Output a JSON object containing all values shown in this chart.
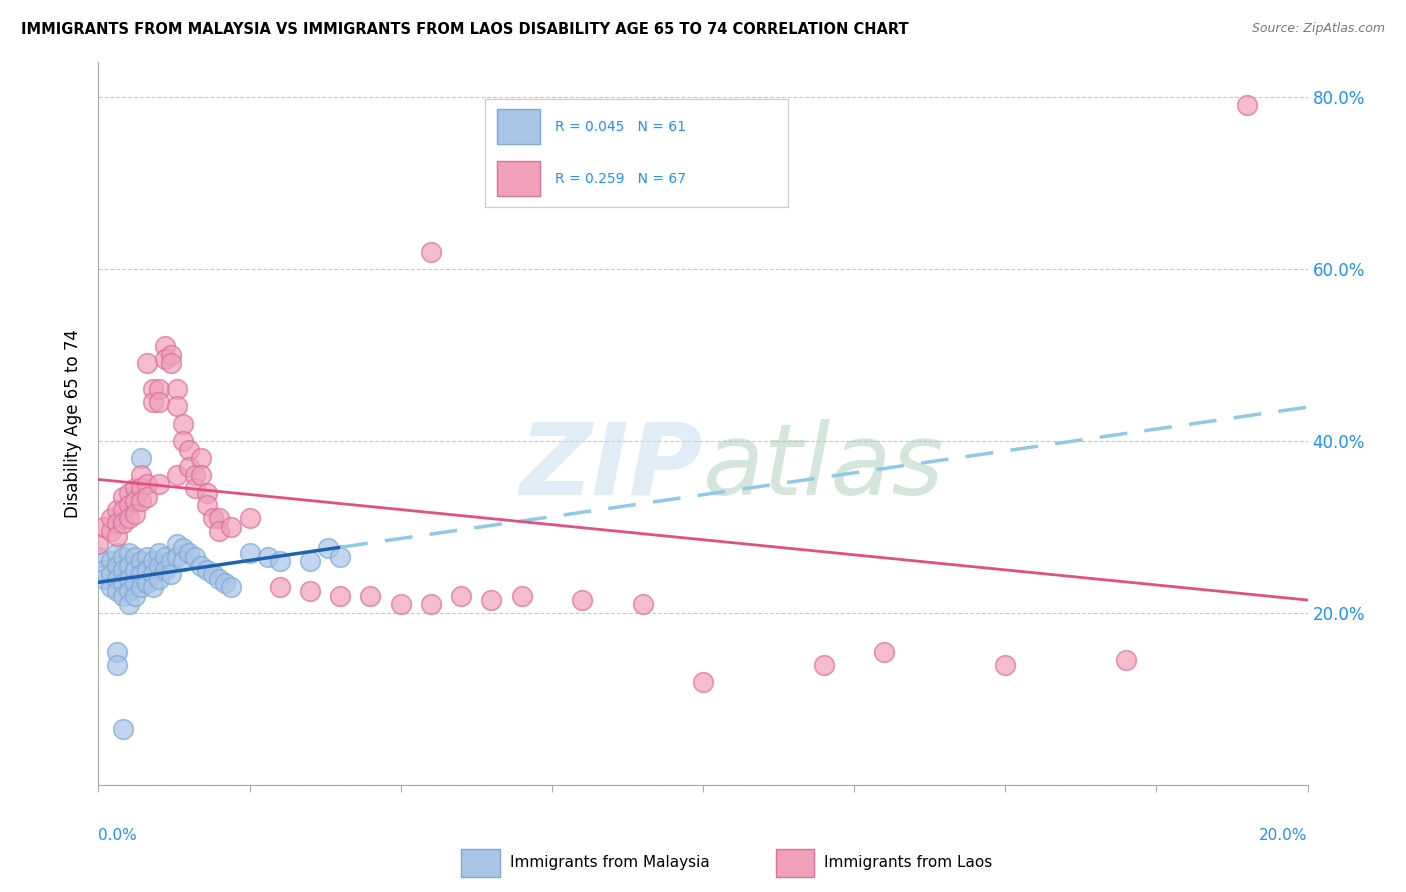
{
  "title": "IMMIGRANTS FROM MALAYSIA VS IMMIGRANTS FROM LAOS DISABILITY AGE 65 TO 74 CORRELATION CHART",
  "source": "Source: ZipAtlas.com",
  "ylabel": "Disability Age 65 to 74",
  "ylim": [
    0.0,
    0.84
  ],
  "xlim": [
    0.0,
    0.2
  ],
  "ytick_vals": [
    0.0,
    0.2,
    0.4,
    0.6,
    0.8
  ],
  "ytick_labels": [
    "",
    "20.0%",
    "40.0%",
    "60.0%",
    "80.0%"
  ],
  "malaysia_color": "#aac4e8",
  "malaysia_edge": "#7aaad0",
  "laos_color": "#f0a0b8",
  "laos_edge": "#d870a0",
  "malaysia_line_color": "#2060b0",
  "laos_line_color": "#e05080",
  "dashed_color": "#90c8e8",
  "malaysia_R": 0.045,
  "malaysia_N": 61,
  "laos_R": 0.259,
  "laos_N": 67,
  "watermark_text": "ZIPatlas",
  "legend_R_color": "#1E90FF",
  "bottom_legend_malaysia": "Immigrants from Malaysia",
  "bottom_legend_laos": "Immigrants from Laos",
  "malaysia_scatter": [
    [
      0.0,
      0.265
    ],
    [
      0.001,
      0.25
    ],
    [
      0.001,
      0.24
    ],
    [
      0.002,
      0.26
    ],
    [
      0.002,
      0.245
    ],
    [
      0.002,
      0.23
    ],
    [
      0.003,
      0.27
    ],
    [
      0.003,
      0.255
    ],
    [
      0.003,
      0.24
    ],
    [
      0.003,
      0.225
    ],
    [
      0.004,
      0.265
    ],
    [
      0.004,
      0.25
    ],
    [
      0.004,
      0.235
    ],
    [
      0.004,
      0.22
    ],
    [
      0.005,
      0.27
    ],
    [
      0.005,
      0.255
    ],
    [
      0.005,
      0.24
    ],
    [
      0.005,
      0.225
    ],
    [
      0.005,
      0.21
    ],
    [
      0.006,
      0.265
    ],
    [
      0.006,
      0.25
    ],
    [
      0.006,
      0.235
    ],
    [
      0.006,
      0.22
    ],
    [
      0.007,
      0.26
    ],
    [
      0.007,
      0.245
    ],
    [
      0.007,
      0.23
    ],
    [
      0.007,
      0.38
    ],
    [
      0.008,
      0.265
    ],
    [
      0.008,
      0.25
    ],
    [
      0.008,
      0.235
    ],
    [
      0.009,
      0.26
    ],
    [
      0.009,
      0.245
    ],
    [
      0.009,
      0.23
    ],
    [
      0.01,
      0.27
    ],
    [
      0.01,
      0.255
    ],
    [
      0.01,
      0.24
    ],
    [
      0.011,
      0.265
    ],
    [
      0.011,
      0.25
    ],
    [
      0.012,
      0.26
    ],
    [
      0.012,
      0.245
    ],
    [
      0.013,
      0.28
    ],
    [
      0.013,
      0.265
    ],
    [
      0.014,
      0.275
    ],
    [
      0.014,
      0.26
    ],
    [
      0.015,
      0.27
    ],
    [
      0.016,
      0.265
    ],
    [
      0.017,
      0.255
    ],
    [
      0.018,
      0.25
    ],
    [
      0.019,
      0.245
    ],
    [
      0.02,
      0.24
    ],
    [
      0.021,
      0.235
    ],
    [
      0.022,
      0.23
    ],
    [
      0.025,
      0.27
    ],
    [
      0.028,
      0.265
    ],
    [
      0.03,
      0.26
    ],
    [
      0.035,
      0.26
    ],
    [
      0.038,
      0.275
    ],
    [
      0.04,
      0.265
    ],
    [
      0.003,
      0.155
    ],
    [
      0.003,
      0.14
    ],
    [
      0.004,
      0.065
    ]
  ],
  "laos_scatter": [
    [
      0.0,
      0.28
    ],
    [
      0.001,
      0.3
    ],
    [
      0.002,
      0.295
    ],
    [
      0.002,
      0.31
    ],
    [
      0.003,
      0.32
    ],
    [
      0.003,
      0.305
    ],
    [
      0.003,
      0.29
    ],
    [
      0.004,
      0.335
    ],
    [
      0.004,
      0.32
    ],
    [
      0.004,
      0.305
    ],
    [
      0.005,
      0.34
    ],
    [
      0.005,
      0.325
    ],
    [
      0.005,
      0.31
    ],
    [
      0.006,
      0.345
    ],
    [
      0.006,
      0.33
    ],
    [
      0.006,
      0.315
    ],
    [
      0.007,
      0.36
    ],
    [
      0.007,
      0.345
    ],
    [
      0.007,
      0.33
    ],
    [
      0.008,
      0.35
    ],
    [
      0.008,
      0.335
    ],
    [
      0.008,
      0.49
    ],
    [
      0.009,
      0.46
    ],
    [
      0.009,
      0.445
    ],
    [
      0.01,
      0.46
    ],
    [
      0.01,
      0.445
    ],
    [
      0.01,
      0.35
    ],
    [
      0.011,
      0.51
    ],
    [
      0.011,
      0.495
    ],
    [
      0.012,
      0.5
    ],
    [
      0.012,
      0.49
    ],
    [
      0.013,
      0.46
    ],
    [
      0.013,
      0.44
    ],
    [
      0.013,
      0.36
    ],
    [
      0.014,
      0.42
    ],
    [
      0.014,
      0.4
    ],
    [
      0.015,
      0.39
    ],
    [
      0.015,
      0.37
    ],
    [
      0.016,
      0.36
    ],
    [
      0.016,
      0.345
    ],
    [
      0.017,
      0.38
    ],
    [
      0.017,
      0.36
    ],
    [
      0.018,
      0.34
    ],
    [
      0.018,
      0.325
    ],
    [
      0.019,
      0.31
    ],
    [
      0.02,
      0.31
    ],
    [
      0.02,
      0.295
    ],
    [
      0.022,
      0.3
    ],
    [
      0.025,
      0.31
    ],
    [
      0.03,
      0.23
    ],
    [
      0.035,
      0.225
    ],
    [
      0.04,
      0.22
    ],
    [
      0.045,
      0.22
    ],
    [
      0.05,
      0.21
    ],
    [
      0.055,
      0.21
    ],
    [
      0.06,
      0.22
    ],
    [
      0.065,
      0.215
    ],
    [
      0.07,
      0.22
    ],
    [
      0.08,
      0.215
    ],
    [
      0.09,
      0.21
    ],
    [
      0.1,
      0.12
    ],
    [
      0.12,
      0.14
    ],
    [
      0.15,
      0.14
    ],
    [
      0.17,
      0.145
    ],
    [
      0.19,
      0.79
    ],
    [
      0.055,
      0.62
    ],
    [
      0.13,
      0.155
    ]
  ]
}
